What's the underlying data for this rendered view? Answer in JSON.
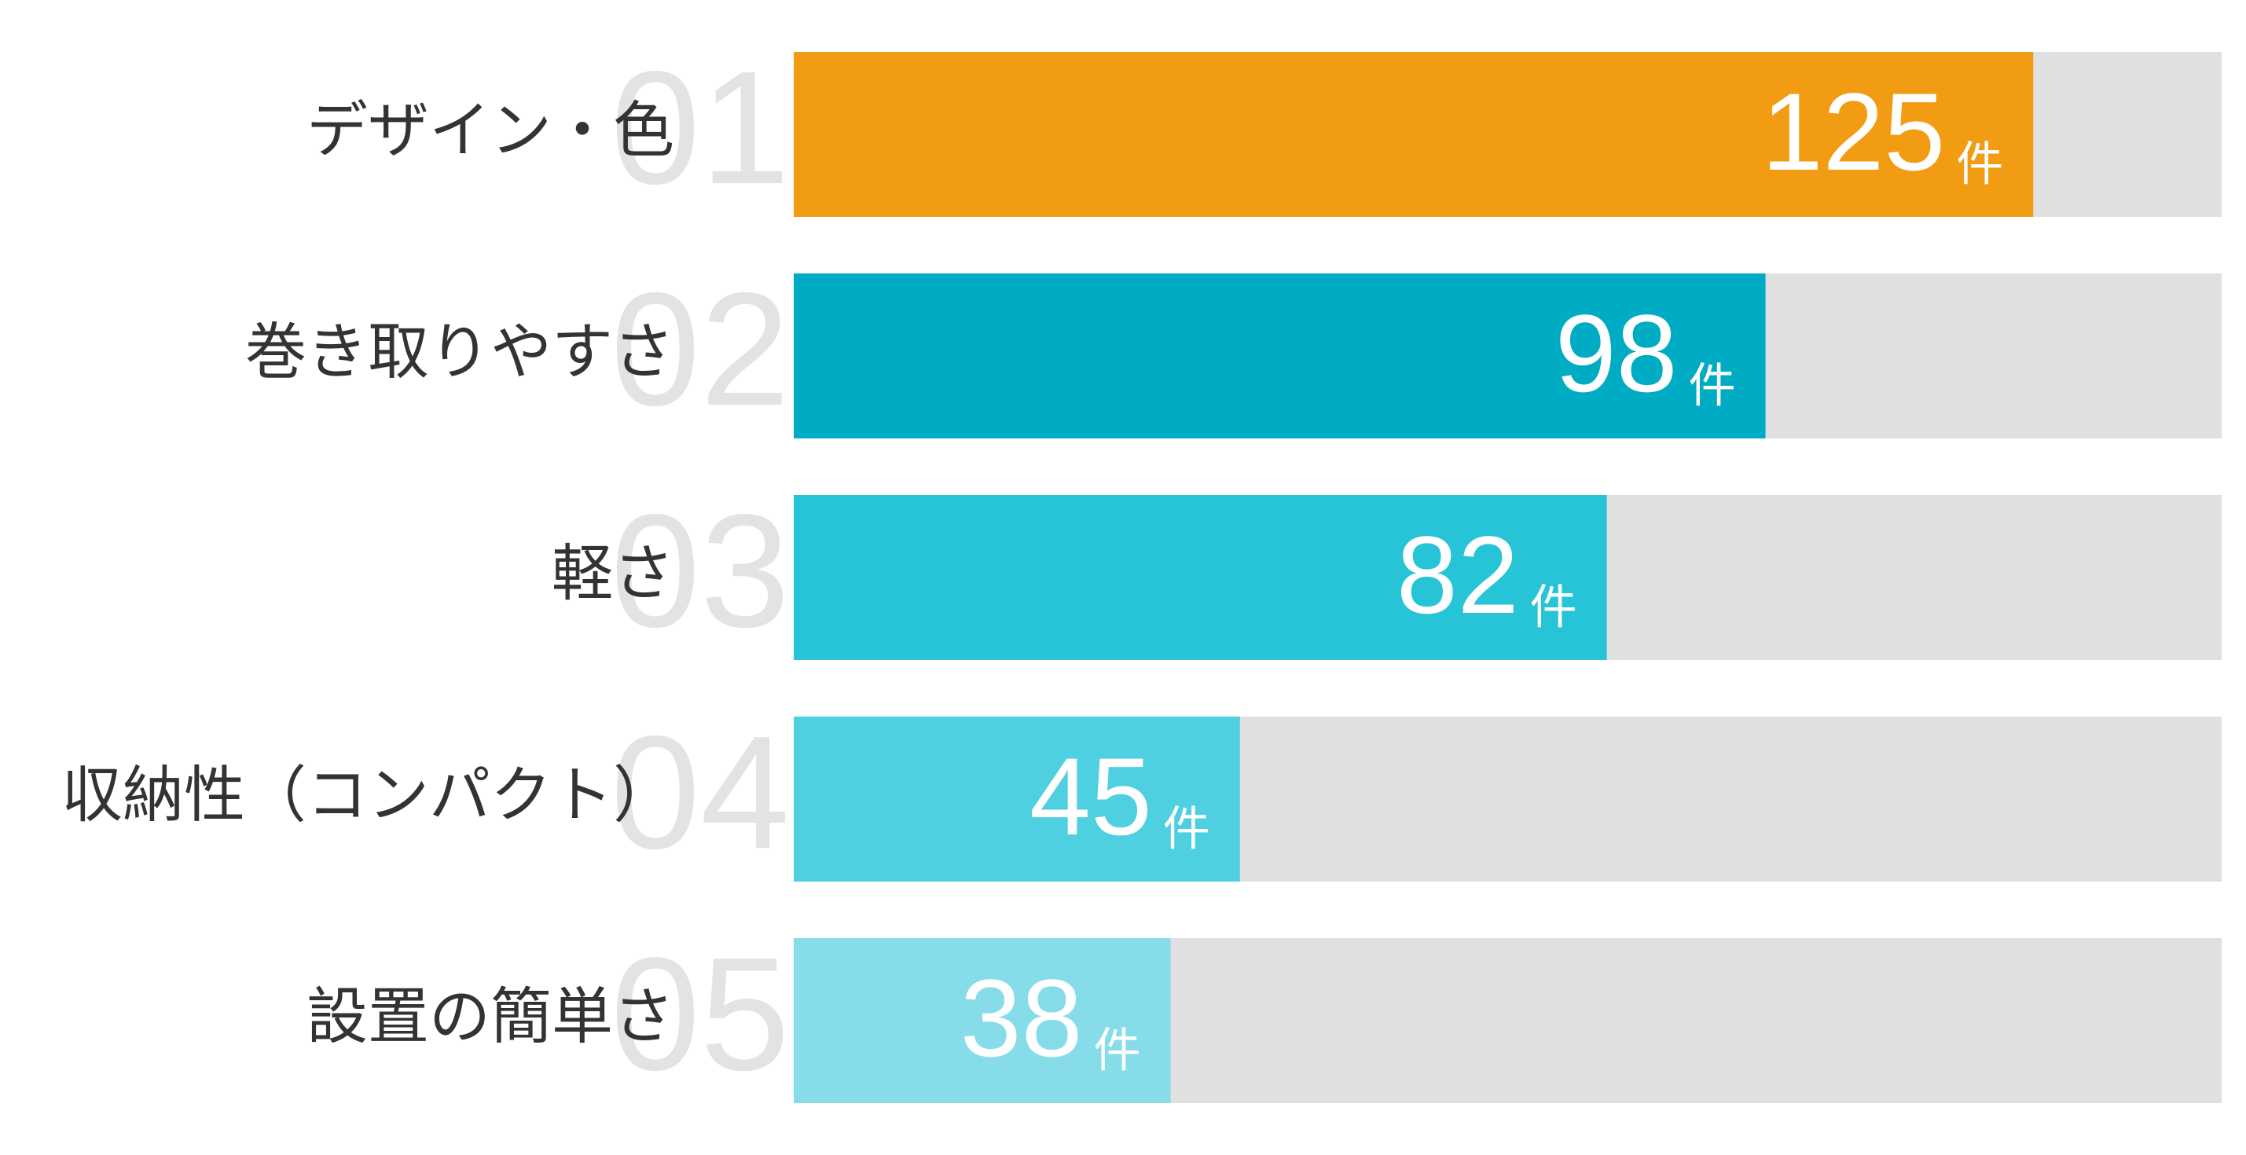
{
  "chart_data": {
    "type": "bar",
    "orientation": "horizontal",
    "ranks": [
      "01",
      "02",
      "03",
      "04",
      "05"
    ],
    "categories": [
      "デザイン・色",
      "巻き取りやすさ",
      "軽さ",
      "収納性（コンパクト）",
      "設置の簡単さ"
    ],
    "values": [
      125,
      98,
      82,
      45,
      38
    ],
    "unit": "件",
    "colors": [
      "#f29c14",
      "#00acc4",
      "#27c4d8",
      "#4fd0e0",
      "#86dde9"
    ],
    "track_color": "#e0e0e0",
    "xlim": [
      0,
      144
    ]
  }
}
